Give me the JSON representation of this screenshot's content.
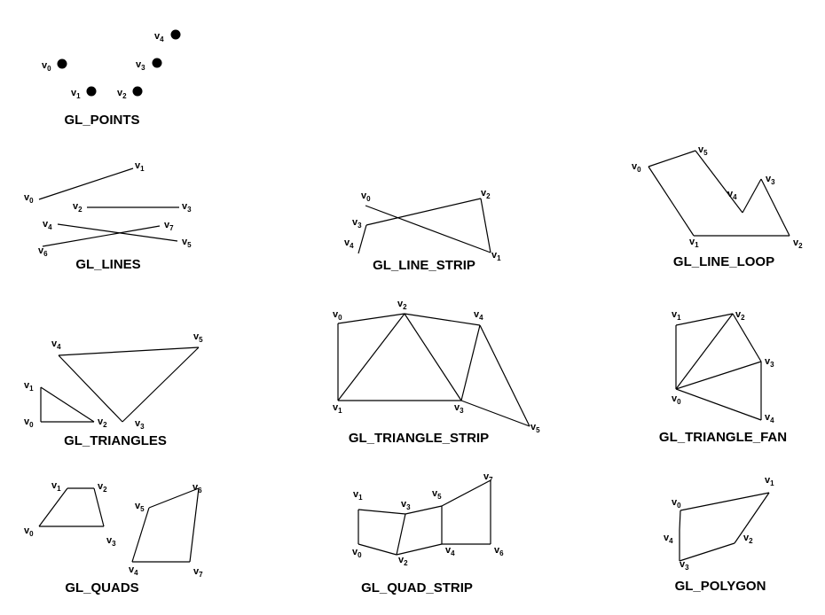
{
  "palette": {
    "ink": "#000000",
    "background": "#ffffff"
  },
  "diagrams": [
    {
      "id": "points",
      "title": "GL_POINTS",
      "vertices": [
        {
          "n": "0"
        },
        {
          "n": "1"
        },
        {
          "n": "2"
        },
        {
          "n": "3"
        },
        {
          "n": "4"
        }
      ]
    },
    {
      "id": "lines",
      "title": "GL_LINES",
      "vertices": [
        {
          "n": "0"
        },
        {
          "n": "1"
        },
        {
          "n": "2"
        },
        {
          "n": "3"
        },
        {
          "n": "4"
        },
        {
          "n": "5"
        },
        {
          "n": "6"
        },
        {
          "n": "7"
        }
      ]
    },
    {
      "id": "line-strip",
      "title": "GL_LINE_STRIP",
      "vertices": [
        {
          "n": "0"
        },
        {
          "n": "1"
        },
        {
          "n": "2"
        },
        {
          "n": "3"
        },
        {
          "n": "4"
        }
      ]
    },
    {
      "id": "line-loop",
      "title": "GL_LINE_LOOP",
      "vertices": [
        {
          "n": "0"
        },
        {
          "n": "1"
        },
        {
          "n": "2"
        },
        {
          "n": "3"
        },
        {
          "n": "4"
        },
        {
          "n": "5"
        }
      ]
    },
    {
      "id": "triangles",
      "title": "GL_TRIANGLES",
      "vertices": [
        {
          "n": "0"
        },
        {
          "n": "1"
        },
        {
          "n": "2"
        },
        {
          "n": "3"
        },
        {
          "n": "4"
        },
        {
          "n": "5"
        }
      ]
    },
    {
      "id": "triangle-strip",
      "title": "GL_TRIANGLE_STRIP",
      "vertices": [
        {
          "n": "0"
        },
        {
          "n": "1"
        },
        {
          "n": "2"
        },
        {
          "n": "3"
        },
        {
          "n": "4"
        },
        {
          "n": "5"
        }
      ]
    },
    {
      "id": "triangle-fan",
      "title": "GL_TRIANGLE_FAN",
      "vertices": [
        {
          "n": "0"
        },
        {
          "n": "1"
        },
        {
          "n": "2"
        },
        {
          "n": "3"
        },
        {
          "n": "4"
        }
      ]
    },
    {
      "id": "quads",
      "title": "GL_QUADS",
      "vertices": [
        {
          "n": "0"
        },
        {
          "n": "1"
        },
        {
          "n": "2"
        },
        {
          "n": "3"
        },
        {
          "n": "4"
        },
        {
          "n": "5"
        },
        {
          "n": "6"
        },
        {
          "n": "7"
        }
      ]
    },
    {
      "id": "quad-strip",
      "title": "GL_QUAD_STRIP",
      "vertices": [
        {
          "n": "0"
        },
        {
          "n": "1"
        },
        {
          "n": "2"
        },
        {
          "n": "3"
        },
        {
          "n": "4"
        },
        {
          "n": "5"
        },
        {
          "n": "6"
        },
        {
          "n": "7"
        }
      ]
    },
    {
      "id": "polygon",
      "title": "GL_POLYGON",
      "vertices": [
        {
          "n": "0"
        },
        {
          "n": "1"
        },
        {
          "n": "2"
        },
        {
          "n": "3"
        },
        {
          "n": "4"
        }
      ]
    }
  ]
}
